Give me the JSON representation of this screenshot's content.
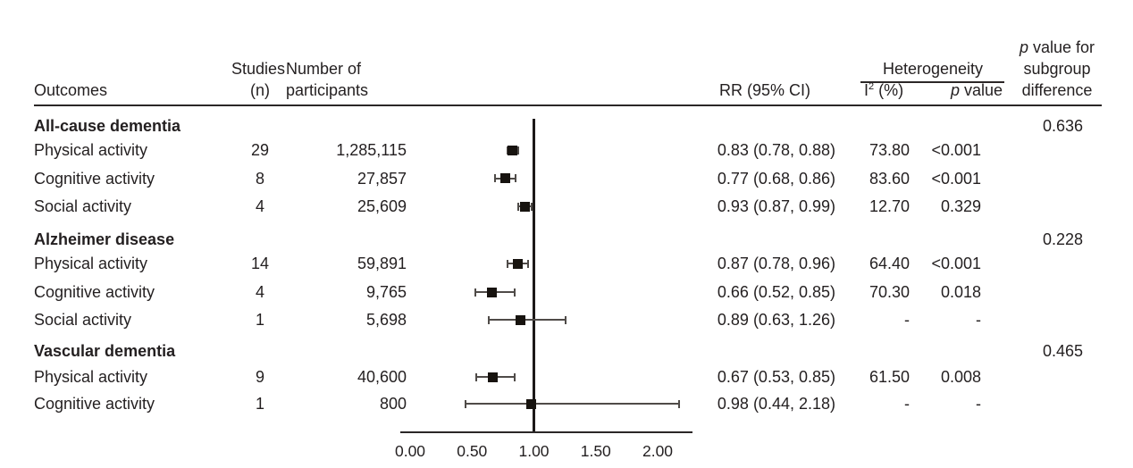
{
  "colors": {
    "text": "#231f20",
    "marker": "#17130f",
    "whisker": "#4f4b48",
    "axis_line": "#1c1918",
    "background": "#ffffff"
  },
  "table": {
    "headers": {
      "outcomes": "Outcomes",
      "studies_line1": "Studies",
      "studies_line2": "(n)",
      "participants_line1": "Number of",
      "participants_line2": "participants",
      "rr": "RR (95% CI)",
      "heterogeneity": "Heterogeneity",
      "i2_base": "I",
      "i2_sup": "2",
      "i2_rest": " (%)",
      "p_head_p": "p",
      "p_head_rest": " value",
      "subgroup_line1_p": "p",
      "subgroup_line1_rest": " value for",
      "subgroup_line2": "subgroup",
      "subgroup_line3": "difference"
    },
    "groups": [
      {
        "name": "All-cause dementia",
        "subgroup_p": "0.636",
        "rows": [
          {
            "outcome": "Physical activity",
            "studies": "29",
            "participants": "1,285,115",
            "rr_text": "0.83 (0.78, 0.88)",
            "rr": 0.83,
            "lo": 0.78,
            "hi": 0.88,
            "i2": "73.80",
            "p": "<0.001"
          },
          {
            "outcome": "Cognitive activity",
            "studies": "8",
            "participants": "27,857",
            "rr_text": "0.77 (0.68, 0.86)",
            "rr": 0.77,
            "lo": 0.68,
            "hi": 0.86,
            "i2": "83.60",
            "p": "<0.001"
          },
          {
            "outcome": "Social activity",
            "studies": "4",
            "participants": "25,609",
            "rr_text": "0.93 (0.87, 0.99)",
            "rr": 0.93,
            "lo": 0.87,
            "hi": 0.99,
            "i2": "12.70",
            "p": "0.329"
          }
        ]
      },
      {
        "name": "Alzheimer disease",
        "subgroup_p": "0.228",
        "rows": [
          {
            "outcome": "Physical activity",
            "studies": "14",
            "participants": "59,891",
            "rr_text": "0.87 (0.78, 0.96)",
            "rr": 0.87,
            "lo": 0.78,
            "hi": 0.96,
            "i2": "64.40",
            "p": "<0.001"
          },
          {
            "outcome": "Cognitive activity",
            "studies": "4",
            "participants": "9,765",
            "rr_text": "0.66 (0.52, 0.85)",
            "rr": 0.66,
            "lo": 0.52,
            "hi": 0.85,
            "i2": "70.30",
            "p": "0.018"
          },
          {
            "outcome": "Social activity",
            "studies": "1",
            "participants": "5,698",
            "rr_text": "0.89 (0.63, 1.26)",
            "rr": 0.89,
            "lo": 0.63,
            "hi": 1.26,
            "i2": "-",
            "p": "-"
          }
        ]
      },
      {
        "name": "Vascular dementia",
        "subgroup_p": "0.465",
        "rows": [
          {
            "outcome": "Physical activity",
            "studies": "9",
            "participants": "40,600",
            "rr_text": "0.67 (0.53, 0.85)",
            "rr": 0.67,
            "lo": 0.53,
            "hi": 0.85,
            "i2": "61.50",
            "p": "0.008"
          },
          {
            "outcome": "Cognitive activity",
            "studies": "1",
            "participants": "800",
            "rr_text": "0.98 (0.44, 2.18)",
            "rr": 0.98,
            "lo": 0.44,
            "hi": 2.18,
            "i2": "-",
            "p": "-"
          }
        ]
      }
    ]
  },
  "axis": {
    "ticks": [
      {
        "label": "0.00",
        "value": 0.0
      },
      {
        "label": "0.50",
        "value": 0.5
      },
      {
        "label": "1.00",
        "value": 1.0
      },
      {
        "label": "1.50",
        "value": 1.5
      },
      {
        "label": "2.00",
        "value": 2.0
      }
    ],
    "reference_value": 1.0
  },
  "chart_data": {
    "type": "scatter",
    "variant": "forest-plot",
    "title": "",
    "xlabel": "",
    "ylabel": "",
    "x_ticks": [
      0.0,
      0.5,
      1.0,
      1.5,
      2.0
    ],
    "x_tick_labels": [
      "0.00",
      "0.50",
      "1.00",
      "1.50",
      "2.00"
    ],
    "x_range": [
      0,
      2.3
    ],
    "reference_line_x": 1.0,
    "legend": "none",
    "grid": false,
    "series": [
      {
        "group": "All-cause dementia",
        "subgroup_difference_p": 0.636,
        "points": [
          {
            "label": "Physical activity",
            "studies_n": 29,
            "participants": 1285115,
            "rr": 0.83,
            "ci_low": 0.78,
            "ci_high": 0.88,
            "i2_pct": 73.8,
            "p_value": "<0.001"
          },
          {
            "label": "Cognitive activity",
            "studies_n": 8,
            "participants": 27857,
            "rr": 0.77,
            "ci_low": 0.68,
            "ci_high": 0.86,
            "i2_pct": 83.6,
            "p_value": "<0.001"
          },
          {
            "label": "Social activity",
            "studies_n": 4,
            "participants": 25609,
            "rr": 0.93,
            "ci_low": 0.87,
            "ci_high": 0.99,
            "i2_pct": 12.7,
            "p_value": "0.329"
          }
        ]
      },
      {
        "group": "Alzheimer disease",
        "subgroup_difference_p": 0.228,
        "points": [
          {
            "label": "Physical activity",
            "studies_n": 14,
            "participants": 59891,
            "rr": 0.87,
            "ci_low": 0.78,
            "ci_high": 0.96,
            "i2_pct": 64.4,
            "p_value": "<0.001"
          },
          {
            "label": "Cognitive activity",
            "studies_n": 4,
            "participants": 9765,
            "rr": 0.66,
            "ci_low": 0.52,
            "ci_high": 0.85,
            "i2_pct": 70.3,
            "p_value": "0.018"
          },
          {
            "label": "Social activity",
            "studies_n": 1,
            "participants": 5698,
            "rr": 0.89,
            "ci_low": 0.63,
            "ci_high": 1.26,
            "i2_pct": null,
            "p_value": null
          }
        ]
      },
      {
        "group": "Vascular dementia",
        "subgroup_difference_p": 0.465,
        "points": [
          {
            "label": "Physical activity",
            "studies_n": 9,
            "participants": 40600,
            "rr": 0.67,
            "ci_low": 0.53,
            "ci_high": 0.85,
            "i2_pct": 61.5,
            "p_value": "0.008"
          },
          {
            "label": "Cognitive activity",
            "studies_n": 1,
            "participants": 800,
            "rr": 0.98,
            "ci_low": 0.44,
            "ci_high": 2.18,
            "i2_pct": null,
            "p_value": null
          }
        ]
      }
    ]
  }
}
